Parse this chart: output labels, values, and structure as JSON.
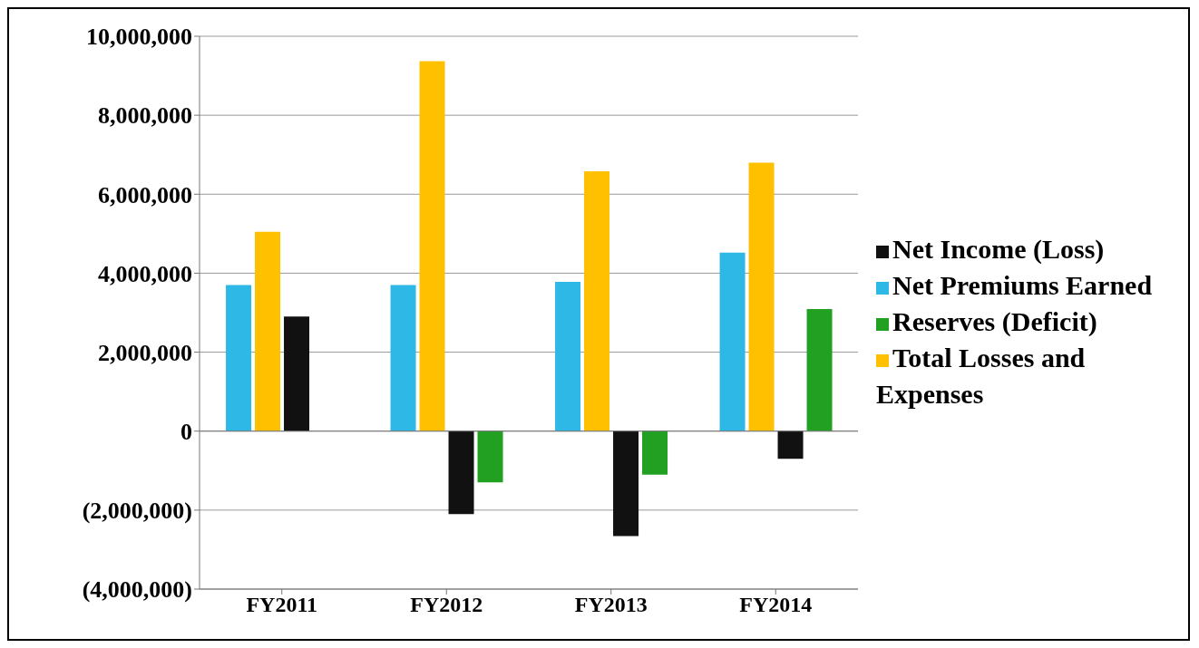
{
  "chart_data": {
    "type": "bar",
    "categories": [
      "FY2011",
      "FY2012",
      "FY2013",
      "FY2014"
    ],
    "series": [
      {
        "name": "Net Premiums Earned",
        "color": "#2eb8e6",
        "values": [
          3700000,
          3700000,
          3780000,
          4520000
        ]
      },
      {
        "name": "Total Losses and Expenses",
        "color": "#ffc000",
        "values": [
          5050000,
          9370000,
          6580000,
          6800000
        ]
      },
      {
        "name": "Net Income (Loss)",
        "color": "#111111",
        "values": [
          2900000,
          -2100000,
          -2660000,
          -700000
        ]
      },
      {
        "name": "Reserves (Deficit)",
        "color": "#22a022",
        "values": [
          null,
          -1300000,
          -1100000,
          3090000
        ]
      }
    ],
    "ylim": [
      -4000000,
      10000000
    ],
    "yticks": [
      {
        "value": -4000000,
        "label": "(4,000,000)"
      },
      {
        "value": -2000000,
        "label": "(2,000,000)"
      },
      0,
      {
        "value": 2000000,
        "label": "2,000,000"
      },
      {
        "value": 4000000,
        "label": "4,000,000"
      },
      {
        "value": 6000000,
        "label": "6,000,000"
      },
      {
        "value": 8000000,
        "label": "8,000,000"
      },
      {
        "value": 10000000,
        "label": "10,000,000"
      }
    ],
    "grid": "y",
    "legend": "right"
  }
}
